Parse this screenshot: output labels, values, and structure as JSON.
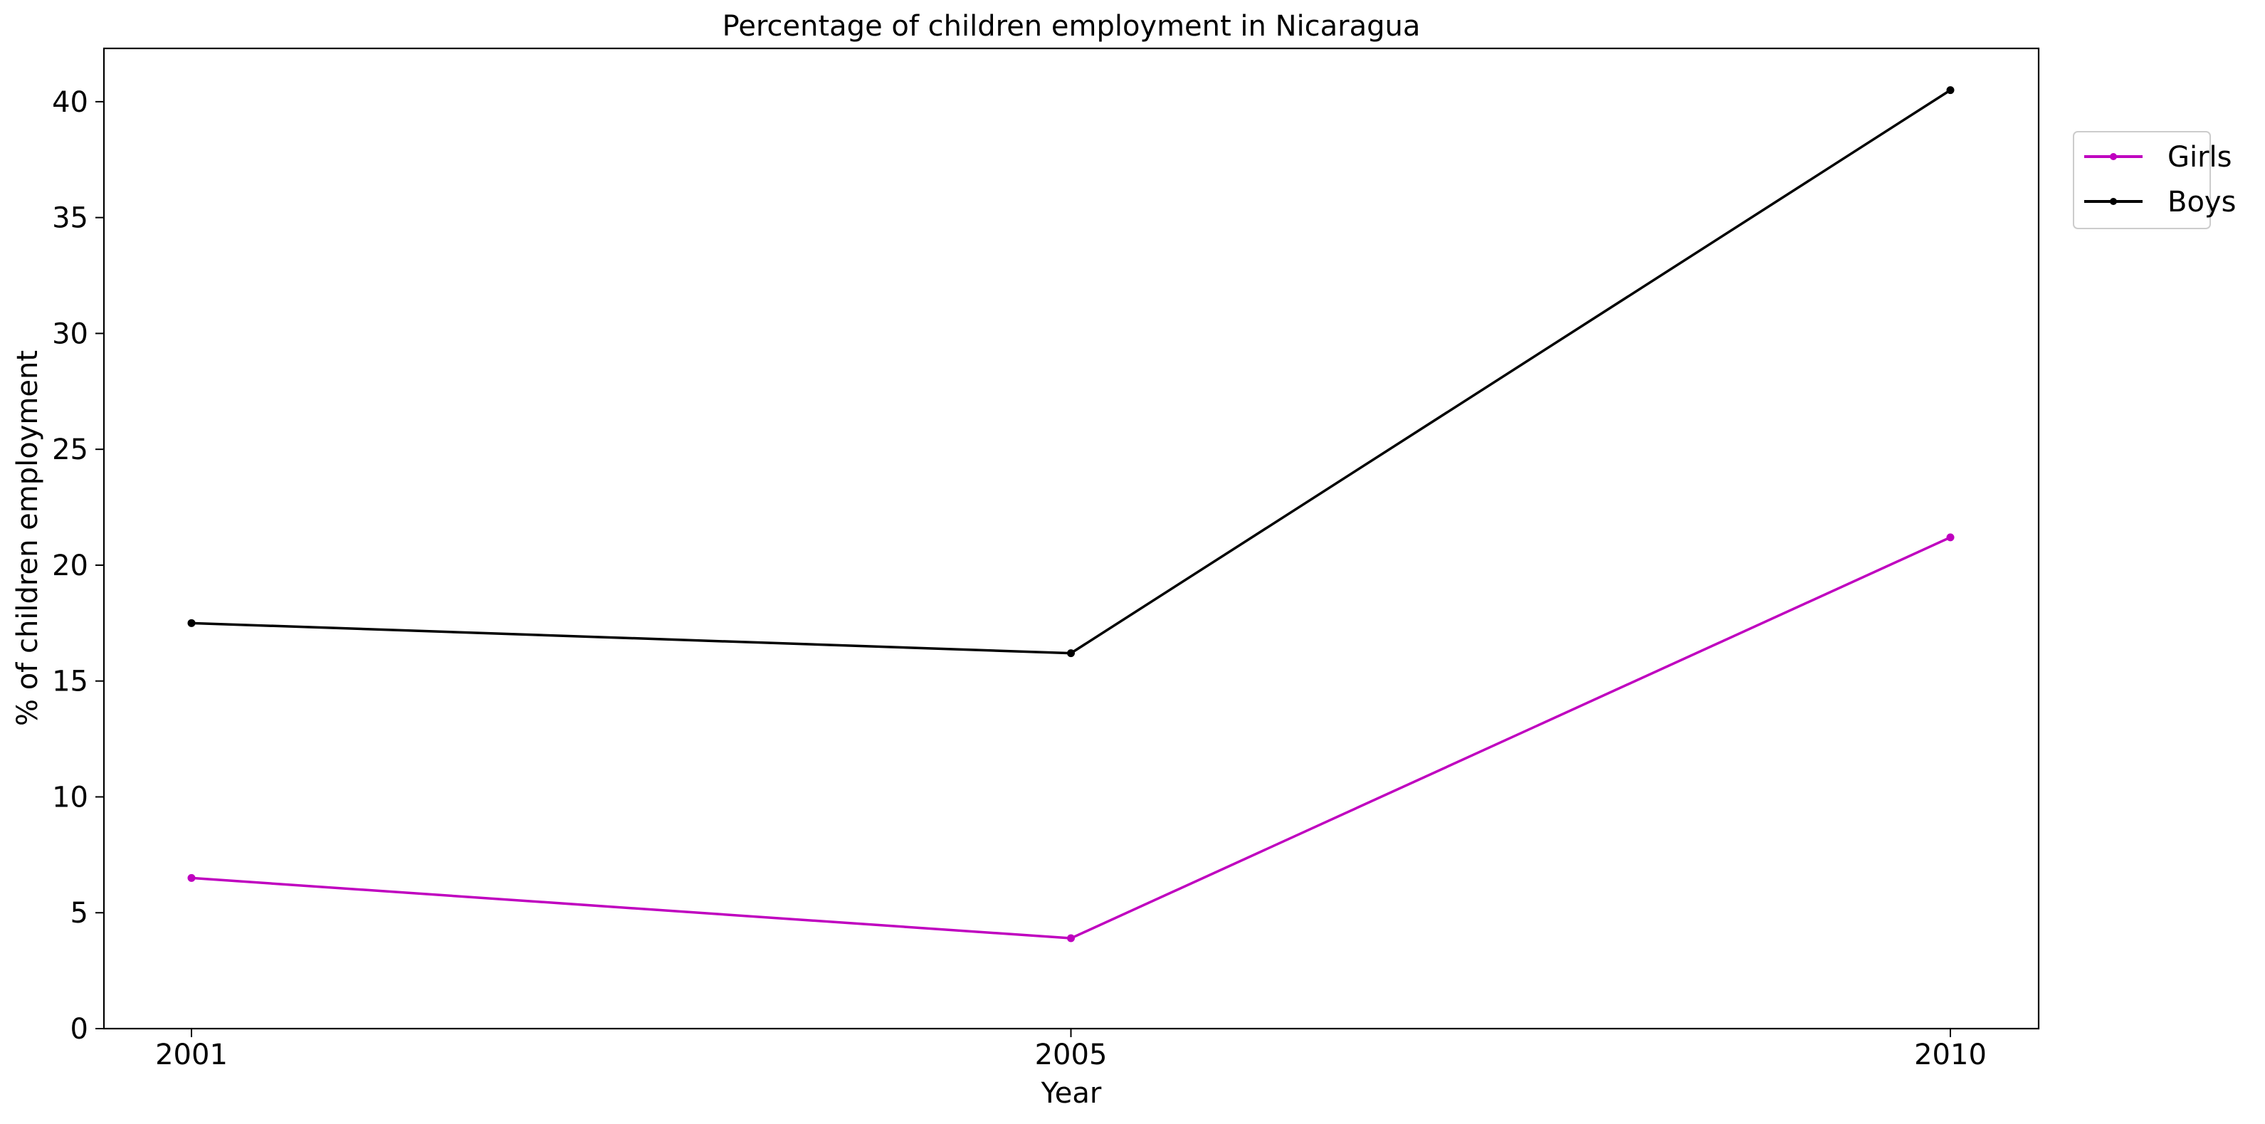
{
  "chart_data": {
    "type": "line",
    "title": "Percentage of children employment in Nicaragua",
    "xlabel": "Year",
    "ylabel": "% of children employment",
    "categories": [
      "2001",
      "2005",
      "2010"
    ],
    "yticks": [
      "0",
      "5",
      "10",
      "15",
      "20",
      "25",
      "30",
      "35",
      "40"
    ],
    "ylim": [
      0,
      42.3
    ],
    "grid": false,
    "legend_position": "outside-top-right",
    "series": [
      {
        "name": "Girls",
        "color": "#bf00bf",
        "values": [
          6.5,
          3.9,
          21.2
        ]
      },
      {
        "name": "Boys",
        "color": "#000000",
        "values": [
          17.5,
          16.2,
          40.5
        ]
      }
    ]
  }
}
